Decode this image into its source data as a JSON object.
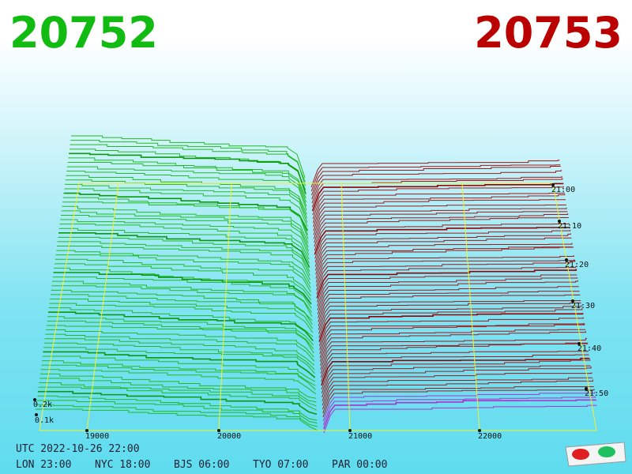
{
  "header": {
    "bid": "20752",
    "ask": "20753"
  },
  "price_axis": [
    "19000",
    "20000",
    "21000",
    "22000"
  ],
  "time_axis": [
    "21:00",
    "21:10",
    "21:20",
    "21:30",
    "21:40",
    "21:50"
  ],
  "depth_axis": [
    "0.2k",
    "0.1k"
  ],
  "footer": {
    "utc": "UTC 2022-10-26 22:00",
    "cities": [
      "LON 23:00",
      "NYC 18:00",
      "BJS 06:00",
      "TYO 07:00",
      "PAR 00:00"
    ]
  }
}
